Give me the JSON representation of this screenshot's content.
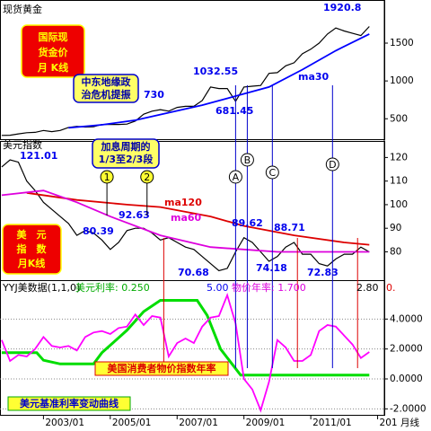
{
  "chart_data": [
    {
      "type": "line",
      "title": "现货黄金",
      "ylim": [
        230,
        2070
      ],
      "yticks": [
        500,
        1000,
        1500
      ],
      "series": [
        {
          "color": "#000000",
          "x": [
            2001.75,
            2002,
            2002.25,
            2002.5,
            2002.75,
            2003,
            2003.25,
            2003.5,
            2003.75,
            2004,
            2004.25,
            2004.5,
            2004.75,
            2005,
            2005.25,
            2005.5,
            2005.75,
            2006,
            2006.25,
            2006.5,
            2006.75,
            2007,
            2007.25,
            2007.5,
            2007.75,
            2008,
            2008.25,
            2008.5,
            2008.75,
            2009,
            2009.25,
            2009.5,
            2009.75,
            2010,
            2010.25,
            2010.5,
            2010.75,
            2011,
            2011.25,
            2011.5,
            2011.75,
            2012,
            2012.25,
            2012.5,
            2012.75
          ],
          "values": [
            280,
            282,
            300,
            315,
            320,
            345,
            330,
            345,
            385,
            400,
            390,
            395,
            425,
            425,
            425,
            430,
            470,
            560,
            600,
            620,
            600,
            650,
            665,
            665,
            740,
            920,
            900,
            900,
            730,
            920,
            930,
            940,
            1100,
            1110,
            1200,
            1240,
            1360,
            1420,
            1500,
            1620,
            1700,
            1660,
            1630,
            1600,
            1720
          ]
        },
        {
          "name": "ma30",
          "color": "#0000ff",
          "x": [
            2003.75,
            2004.75,
            2005.75,
            2006.75,
            2007.75,
            2008.75,
            2009.75,
            2010.75,
            2011.75,
            2012.75
          ],
          "values": [
            380,
            420,
            480,
            580,
            680,
            800,
            920,
            1150,
            1400,
            1620
          ]
        }
      ],
      "annotations": [
        "1920.8",
        "1032.55",
        "681.45",
        "730"
      ],
      "callouts": [
        [
          "国际现",
          "货金价",
          "月 K线"
        ],
        [
          "中东地缘政",
          "治危机提振"
        ]
      ]
    },
    {
      "type": "line",
      "title": "美元指数",
      "ylim": [
        68,
        127
      ],
      "yticks": [
        80,
        90,
        100,
        110,
        120
      ],
      "series": [
        {
          "color": "#000000",
          "x": [
            2001.75,
            2002,
            2002.25,
            2002.5,
            2002.75,
            2003,
            2003.25,
            2003.5,
            2003.75,
            2004,
            2004.25,
            2004.5,
            2004.75,
            2005,
            2005.25,
            2005.5,
            2005.75,
            2006,
            2006.25,
            2006.5,
            2006.75,
            2007,
            2007.25,
            2007.5,
            2007.75,
            2008,
            2008.25,
            2008.5,
            2008.75,
            2009,
            2009.25,
            2009.5,
            2009.75,
            2010,
            2010.25,
            2010.5,
            2010.75,
            2011,
            2011.25,
            2011.5,
            2011.75,
            2012,
            2012.25,
            2012.5,
            2012.75
          ],
          "values": [
            116,
            119,
            118,
            110,
            106,
            101,
            98,
            95,
            92,
            87,
            89,
            88,
            85,
            81,
            84,
            89,
            90,
            90,
            88,
            85,
            86,
            84,
            82,
            81,
            78,
            75,
            72,
            73,
            80,
            86,
            84,
            80,
            76,
            78,
            82,
            84,
            79,
            79,
            75,
            74,
            77,
            79,
            79,
            82,
            80
          ]
        },
        {
          "name": "ma120",
          "color": "#dd0000",
          "x": [
            2002.5,
            2004,
            2005.5,
            2006.5,
            2008,
            2009,
            2010.5,
            2012,
            2012.75
          ],
          "values": [
            105,
            102,
            100,
            99,
            95,
            91,
            87,
            84,
            83
          ]
        },
        {
          "name": "ma60",
          "color": "#dd00dd",
          "x": [
            2001.75,
            2003,
            2004,
            2005,
            2006.5,
            2008,
            2010,
            2011.5,
            2012.75
          ],
          "values": [
            104,
            106,
            101,
            95,
            87,
            82,
            80,
            80,
            80
          ]
        }
      ],
      "annotations": [
        "121.01",
        "80.39",
        "92.63",
        "70.68",
        "89.62",
        "74.18",
        "88.71",
        "72.83"
      ],
      "callouts": [
        [
          "加息周期的",
          "1/3至2/3段"
        ],
        [
          "美　元",
          "指　数",
          "月K线"
        ]
      ],
      "events": [
        {
          "label": "1",
          "x": 2004.9
        },
        {
          "label": "2",
          "x": 2006.1
        },
        {
          "label": "A",
          "x": 2008.75
        },
        {
          "label": "B",
          "x": 2009.1
        },
        {
          "label": "C",
          "x": 2009.85
        },
        {
          "label": "D",
          "x": 2011.65
        }
      ],
      "drops": [
        2006.6,
        2010.6,
        2012.4
      ]
    },
    {
      "type": "line",
      "ylim": [
        -2.4,
        6.6
      ],
      "yticks": [
        {
          "value": 4,
          "label": "4.0000"
        },
        {
          "value": 2,
          "label": "2.0000"
        },
        {
          "value": 0,
          "label": "0.0000"
        },
        {
          "value": -2,
          "label": "-2.0000"
        }
      ],
      "xlim": [
        2001.7,
        2013.2
      ],
      "xticks": [
        {
          "value": 2003,
          "label": "2003/01"
        },
        {
          "value": 2005,
          "label": "2005/01"
        },
        {
          "value": 2007,
          "label": "2007/01"
        },
        {
          "value": 2009,
          "label": "2009/01"
        },
        {
          "value": 2011,
          "label": "2011/01"
        },
        {
          "value": 2013,
          "label": "201"
        }
      ],
      "x_label": "月线",
      "series": [
        {
          "name": "美元基准利率变动曲线",
          "color": "#00dd00",
          "x": [
            2001.75,
            2002.8,
            2003.0,
            2003.5,
            2004.5,
            2004.75,
            2005.0,
            2005.5,
            2006.0,
            2006.5,
            2007.6,
            2007.9,
            2008.3,
            2008.9,
            2009.0,
            2012.75
          ],
          "values": [
            1.75,
            1.75,
            1.25,
            1.0,
            1.0,
            1.75,
            2.25,
            3.25,
            4.5,
            5.25,
            5.25,
            4.25,
            2.0,
            0.25,
            0.25,
            0.25
          ]
        },
        {
          "name": "美国消费者物价指数年率",
          "color": "#ff00ff",
          "x": [
            2001.75,
            2002,
            2002.25,
            2002.5,
            2002.75,
            2003,
            2003.25,
            2003.5,
            2003.75,
            2004,
            2004.25,
            2004.5,
            2004.75,
            2005,
            2005.25,
            2005.5,
            2005.75,
            2006,
            2006.25,
            2006.5,
            2006.75,
            2007,
            2007.25,
            2007.5,
            2007.75,
            2008,
            2008.25,
            2008.5,
            2008.75,
            2009,
            2009.25,
            2009.5,
            2009.75,
            2010,
            2010.25,
            2010.5,
            2010.75,
            2011,
            2011.25,
            2011.5,
            2011.75,
            2012,
            2012.25,
            2012.5,
            2012.75
          ],
          "values": [
            2.6,
            1.2,
            1.6,
            1.5,
            2.0,
            2.8,
            2.2,
            2.1,
            2.2,
            1.9,
            2.8,
            3.1,
            3.2,
            3.0,
            3.4,
            3.5,
            4.3,
            3.6,
            4.2,
            4.1,
            1.5,
            2.4,
            2.7,
            2.4,
            3.5,
            4.1,
            4.2,
            5.6,
            3.7,
            0.0,
            -0.7,
            -2.1,
            -0.2,
            2.6,
            2.1,
            1.2,
            1.2,
            1.6,
            3.2,
            3.6,
            3.5,
            2.9,
            2.3,
            1.4,
            1.8
          ]
        }
      ],
      "annotations": [
        "YYJ美数据(1,1,0)",
        "美元利率: 0.250",
        "5.00",
        "物价年率: 1.700",
        "2.80",
        "0."
      ]
    }
  ]
}
